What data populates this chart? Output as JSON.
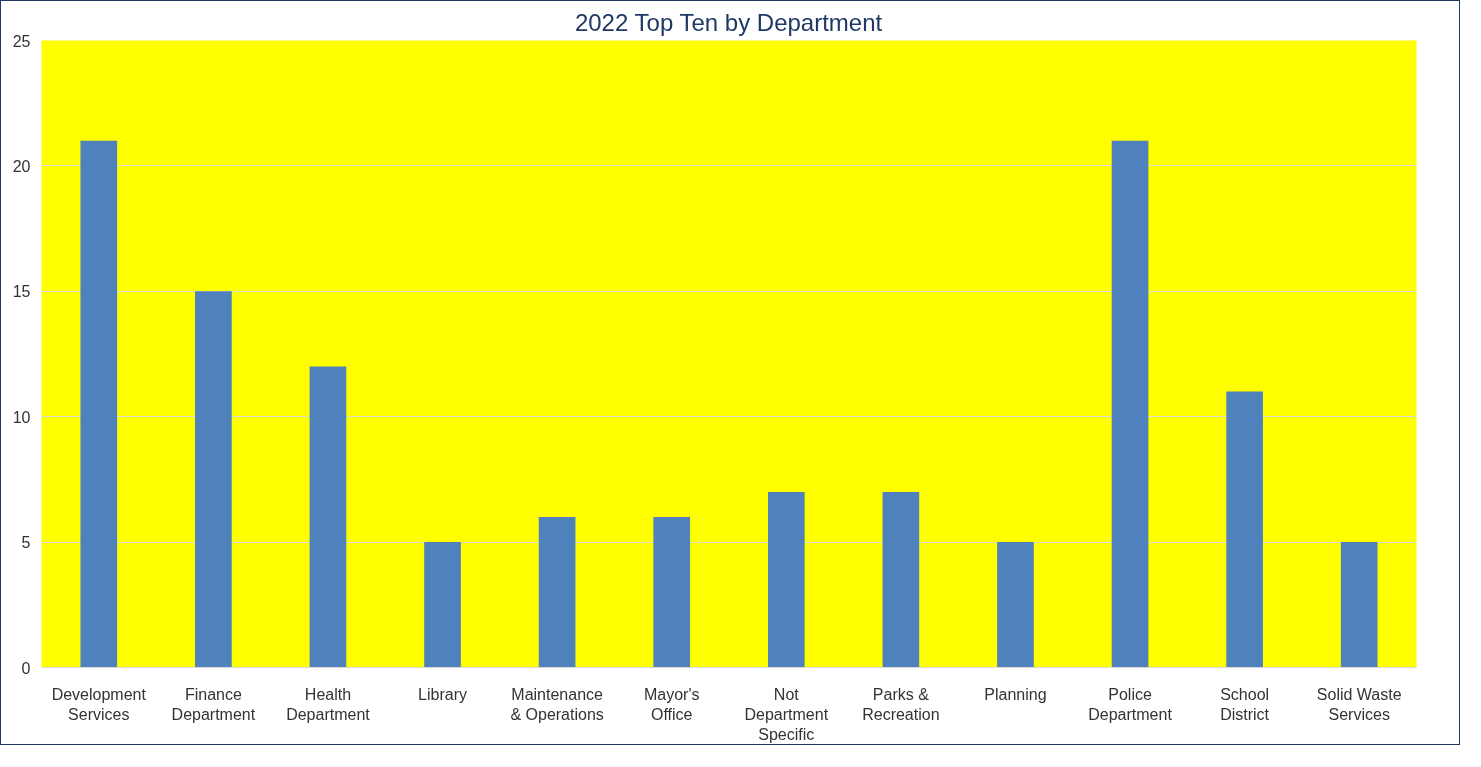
{
  "chart_data": {
    "type": "bar",
    "title": "2022 Top Ten by Department",
    "categories": [
      "Development Services",
      "Finance Department",
      "Health Department",
      "Library",
      "Maintenance & Operations",
      "Mayor's Office",
      "Not Department Specific",
      "Parks & Recreation",
      "Planning",
      "Police Department",
      "School District",
      "Solid Waste Services"
    ],
    "values": [
      21,
      15,
      12,
      5,
      6,
      6,
      7,
      7,
      5,
      21,
      11,
      5
    ],
    "color": "#4f81bd",
    "ylim": [
      0,
      25
    ],
    "yticks": [
      0,
      5,
      10,
      15,
      20,
      25
    ],
    "grid": "y"
  }
}
